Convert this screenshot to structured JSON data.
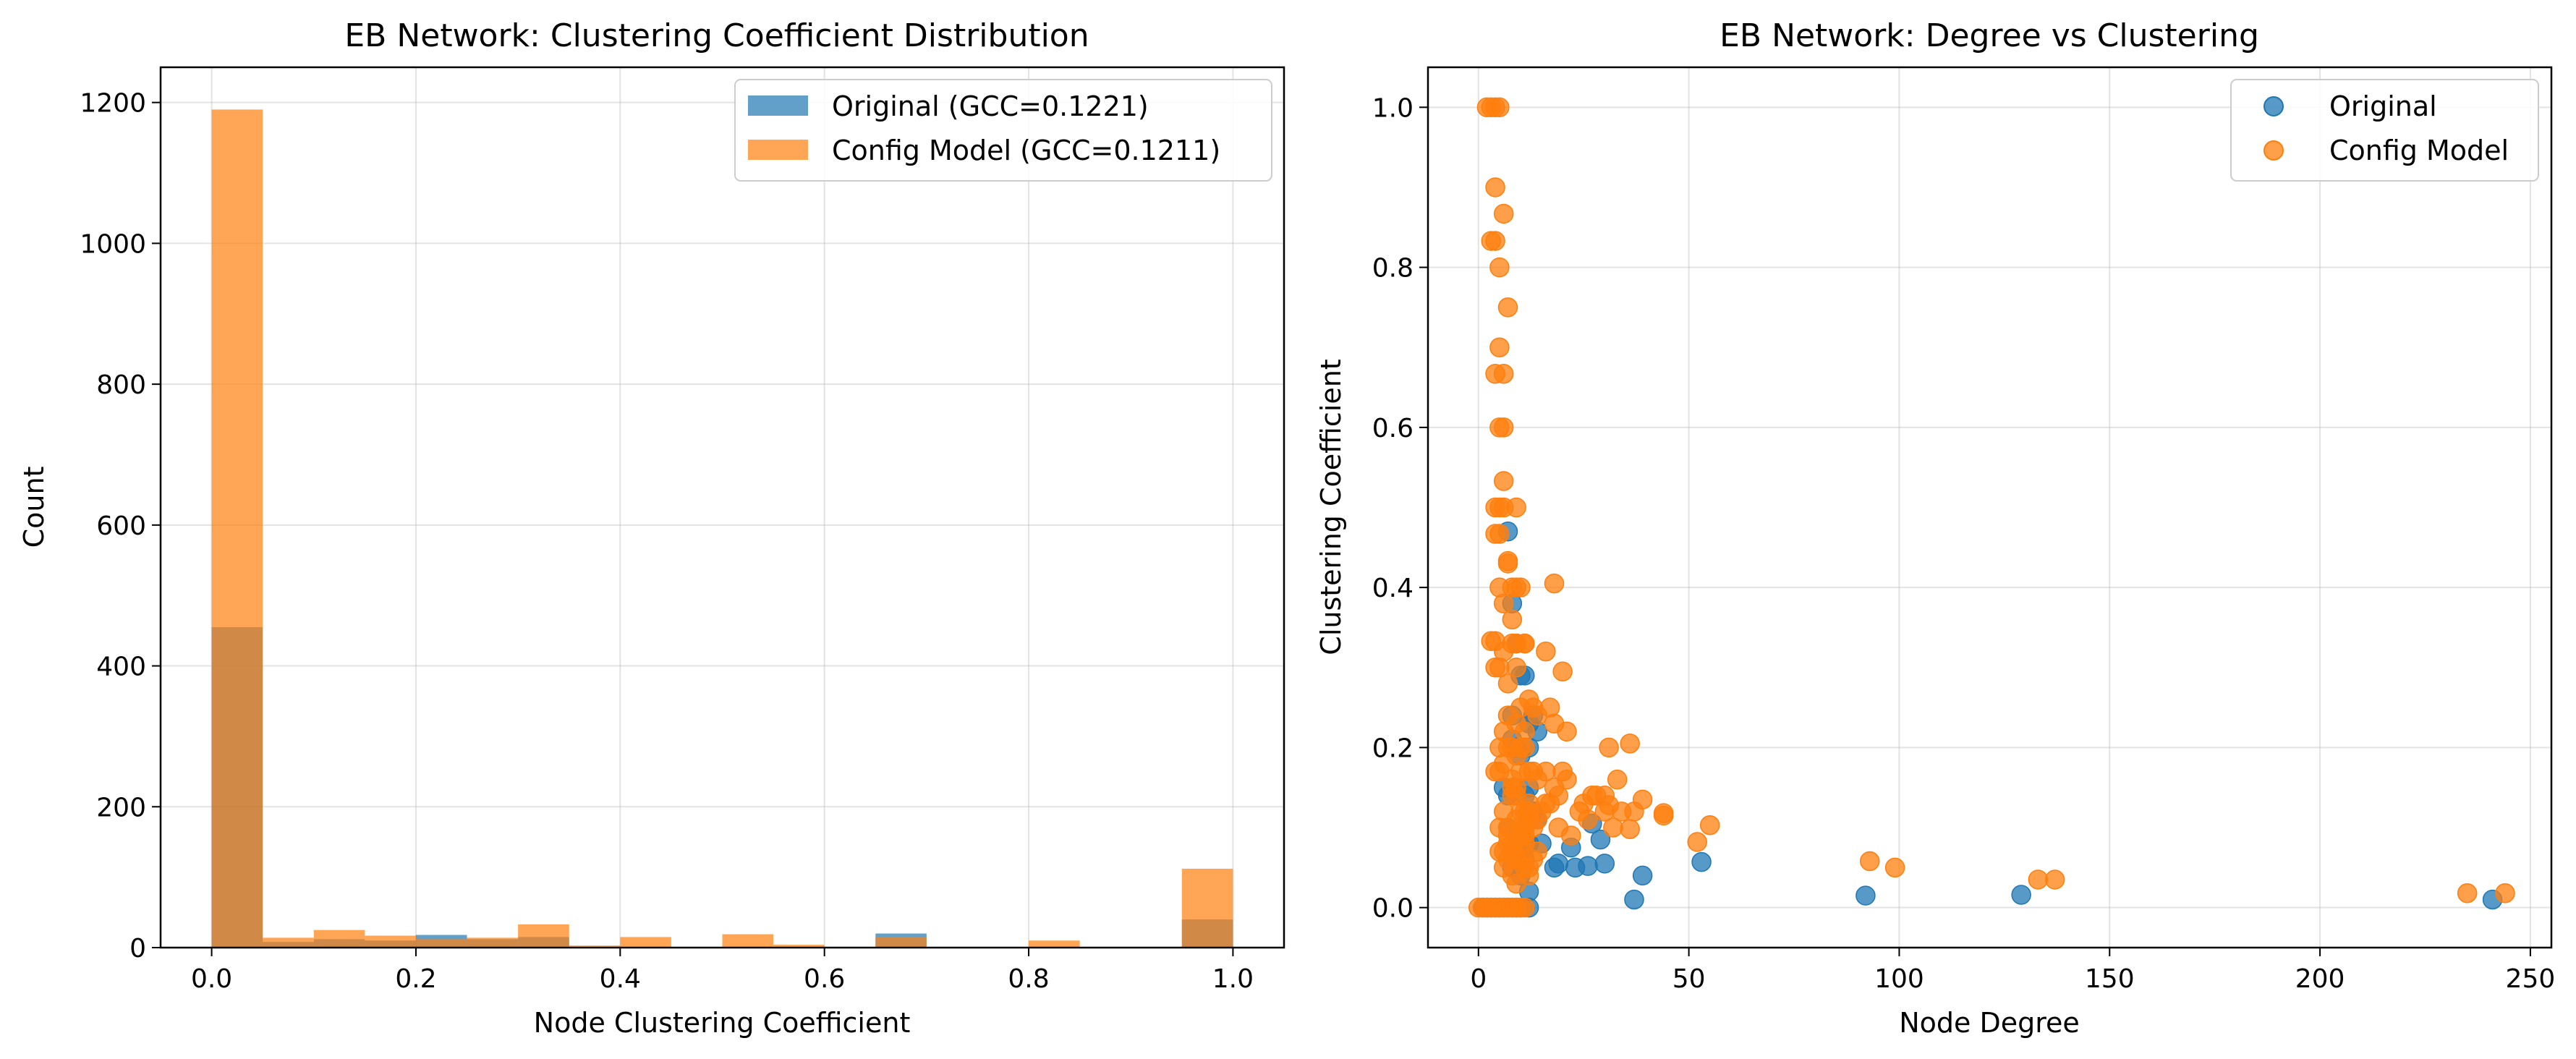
{
  "chart_data": [
    {
      "type": "bar",
      "title": "EB Network: Clustering Coefficient Distribution",
      "xlabel": "Node Clustering Coefficient",
      "ylabel": "Count",
      "xlim": [
        -0.05,
        1.05
      ],
      "ylim": [
        0,
        1250
      ],
      "xticks": [
        0.0,
        0.2,
        0.4,
        0.6,
        0.8,
        1.0
      ],
      "xtick_labels": [
        "0.0",
        "0.2",
        "0.4",
        "0.6",
        "0.8",
        "1.0"
      ],
      "yticks": [
        0,
        200,
        400,
        600,
        800,
        1000,
        1200
      ],
      "ytick_labels": [
        "0",
        "200",
        "400",
        "600",
        "800",
        "1000",
        "1200"
      ],
      "grid": true,
      "legend_position": "top-right",
      "bin_edges": [
        0.0,
        0.05,
        0.1,
        0.15,
        0.2,
        0.25,
        0.3,
        0.35,
        0.4,
        0.45,
        0.5,
        0.55,
        0.6,
        0.65,
        0.7,
        0.75,
        0.8,
        0.85,
        0.9,
        0.95,
        1.0
      ],
      "series": [
        {
          "name": "Original (GCC=0.1221)",
          "color": "#1f77b4",
          "values": [
            455,
            8,
            12,
            10,
            18,
            12,
            15,
            0,
            0,
            0,
            0,
            0,
            0,
            20,
            0,
            0,
            0,
            0,
            0,
            40
          ]
        },
        {
          "name": "Config Model (GCC=0.1211)",
          "color": "#ff7f0e",
          "values": [
            1190,
            14,
            25,
            17,
            12,
            14,
            33,
            3,
            15,
            0,
            19,
            4,
            0,
            15,
            0,
            0,
            10,
            0,
            0,
            112
          ]
        }
      ]
    },
    {
      "type": "scatter",
      "title": "EB Network: Degree vs Clustering",
      "xlabel": "Node Degree",
      "ylabel": "Clustering Coefficient",
      "xlim": [
        -12,
        255
      ],
      "ylim": [
        -0.05,
        1.05
      ],
      "xticks": [
        0,
        50,
        100,
        150,
        200,
        250
      ],
      "xtick_labels": [
        "0",
        "50",
        "100",
        "150",
        "200",
        "250"
      ],
      "yticks": [
        0.0,
        0.2,
        0.4,
        0.6,
        0.8,
        1.0
      ],
      "ytick_labels": [
        "0.0",
        "0.2",
        "0.4",
        "0.6",
        "0.8",
        "1.0"
      ],
      "grid": true,
      "legend_position": "top-right",
      "series": [
        {
          "name": "Original",
          "color": "#1f77b4",
          "x": [
            1,
            2,
            3,
            4,
            5,
            6,
            7,
            8,
            9,
            10,
            12,
            7,
            8,
            9,
            10,
            11,
            12,
            13,
            14,
            6,
            7,
            8,
            9,
            10,
            11,
            12,
            13,
            11,
            12,
            10,
            9,
            8,
            7,
            12,
            11,
            10,
            13,
            12,
            18,
            19,
            22,
            23,
            26,
            27,
            29,
            30,
            37,
            39,
            53,
            92,
            129,
            241,
            8,
            9,
            14,
            15
          ],
          "y": [
            0.0,
            0.0,
            0.0,
            0.0,
            0.0,
            0.0,
            0.0,
            0.0,
            0.0,
            0.0,
            0.0,
            0.47,
            0.38,
            0.33,
            0.29,
            0.29,
            0.23,
            0.24,
            0.22,
            0.15,
            0.14,
            0.21,
            0.2,
            0.19,
            0.14,
            0.15,
            0.12,
            0.1,
            0.08,
            0.07,
            0.06,
            0.05,
            0.1,
            0.02,
            0.06,
            0.04,
            0.12,
            0.2,
            0.05,
            0.055,
            0.075,
            0.05,
            0.052,
            0.105,
            0.085,
            0.055,
            0.01,
            0.04,
            0.057,
            0.015,
            0.016,
            0.01,
            0.24,
            0.09,
            0.11,
            0.08
          ]
        },
        {
          "name": "Config Model",
          "color": "#ff7f0e",
          "x": [
            0,
            1,
            2,
            3,
            4,
            5,
            6,
            7,
            8,
            9,
            10,
            11,
            2,
            3,
            4,
            5,
            3,
            4,
            5,
            6,
            4,
            5,
            6,
            4,
            5,
            6,
            7,
            9,
            4,
            5,
            6,
            4,
            5,
            6,
            7,
            8,
            9,
            3,
            4,
            5,
            6,
            7,
            8,
            9,
            10,
            11,
            18,
            4,
            5,
            6,
            7,
            8,
            9,
            10,
            11,
            12,
            16,
            20,
            5,
            6,
            7,
            8,
            9,
            10,
            11,
            12,
            13,
            14,
            17,
            18,
            21,
            4,
            5,
            6,
            7,
            8,
            9,
            10,
            11,
            12,
            13,
            14,
            16,
            18,
            20,
            25,
            28,
            31,
            33,
            36,
            5,
            6,
            7,
            8,
            9,
            10,
            11,
            12,
            13,
            15,
            17,
            19,
            21,
            24,
            27,
            30,
            34,
            37,
            39,
            44,
            5,
            6,
            7,
            8,
            9,
            10,
            11,
            12,
            13,
            14,
            16,
            19,
            22,
            26,
            30,
            32,
            6,
            7,
            8,
            9,
            10,
            11,
            12,
            14,
            7,
            8,
            9,
            10,
            11,
            12,
            9,
            10,
            11,
            8,
            9,
            52,
            55,
            93,
            99,
            133,
            137,
            235,
            244,
            44,
            31,
            36
          ],
          "y": [
            0.0,
            0.0,
            0.0,
            0.0,
            0.0,
            0.0,
            0.0,
            0.0,
            0.0,
            0.0,
            0.0,
            0.0,
            1.0,
            1.0,
            1.0,
            1.0,
            0.833,
            0.833,
            0.8,
            0.867,
            0.9,
            0.7,
            0.667,
            0.667,
            0.6,
            0.6,
            0.75,
            0.5,
            0.5,
            0.5,
            0.533,
            0.467,
            0.467,
            0.5,
            0.433,
            0.4,
            0.4,
            0.333,
            0.333,
            0.4,
            0.38,
            0.43,
            0.36,
            0.33,
            0.4,
            0.33,
            0.405,
            0.3,
            0.3,
            0.32,
            0.28,
            0.33,
            0.3,
            0.25,
            0.33,
            0.26,
            0.32,
            0.295,
            0.2,
            0.22,
            0.24,
            0.2,
            0.23,
            0.2,
            0.22,
            0.17,
            0.25,
            0.24,
            0.25,
            0.23,
            0.22,
            0.17,
            0.17,
            0.18,
            0.2,
            0.15,
            0.19,
            0.17,
            0.2,
            0.12,
            0.17,
            0.16,
            0.17,
            0.15,
            0.17,
            0.13,
            0.14,
            0.2,
            0.16,
            0.205,
            0.1,
            0.12,
            0.1,
            0.14,
            0.11,
            0.12,
            0.1,
            0.13,
            0.1,
            0.12,
            0.13,
            0.14,
            0.16,
            0.12,
            0.14,
            0.14,
            0.12,
            0.12,
            0.135,
            0.115,
            0.07,
            0.07,
            0.09,
            0.08,
            0.06,
            0.09,
            0.08,
            0.05,
            0.06,
            0.11,
            0.13,
            0.1,
            0.09,
            0.11,
            0.12,
            0.1,
            0.05,
            0.06,
            0.04,
            0.03,
            0.06,
            0.05,
            0.04,
            0.07,
            0.08,
            0.07,
            0.06,
            0.1,
            0.12,
            0.11,
            0.14,
            0.08,
            0.09,
            0.16,
            0.15,
            0.082,
            0.103,
            0.058,
            0.05,
            0.035,
            0.035,
            0.018,
            0.018,
            0.118,
            0.128,
            0.098
          ]
        }
      ]
    }
  ]
}
